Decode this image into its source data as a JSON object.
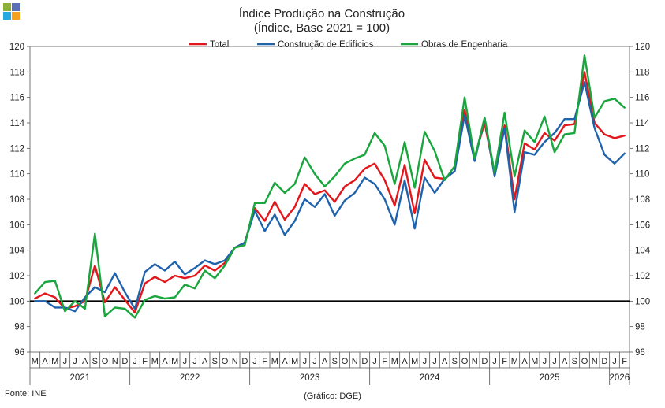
{
  "logo_colors": [
    "#8db03a",
    "#5b6fb7",
    "#25a9e0",
    "#f4a21d"
  ],
  "chart_data": {
    "type": "line",
    "title": "Índice Produção na Construção",
    "subtitle": "(Índice, Base 2021 = 100)",
    "ylim": [
      96,
      120
    ],
    "yticks": [
      96,
      98,
      100,
      102,
      104,
      106,
      108,
      110,
      112,
      114,
      116,
      118,
      120
    ],
    "reference_line": 100,
    "x_month_labels": [
      "M",
      "A",
      "M",
      "J",
      "J",
      "A",
      "S",
      "O",
      "N",
      "D",
      "J",
      "F",
      "M",
      "A",
      "M",
      "J",
      "J",
      "A",
      "S",
      "O",
      "N",
      "D",
      "J",
      "F",
      "M",
      "A",
      "M",
      "J",
      "J",
      "A",
      "S",
      "O",
      "N",
      "D",
      "J",
      "F",
      "M",
      "A",
      "M",
      "J",
      "J",
      "A",
      "S",
      "O",
      "N",
      "D",
      "J",
      "F",
      "M",
      "A",
      "M",
      "J",
      "J",
      "A",
      "S",
      "O",
      "N",
      "D",
      "J",
      "F"
    ],
    "years": [
      {
        "label": "2021",
        "start": 0,
        "end": 9
      },
      {
        "label": "2022",
        "start": 10,
        "end": 21
      },
      {
        "label": "2023",
        "start": 22,
        "end": 33
      },
      {
        "label": "2024",
        "start": 34,
        "end": 45
      },
      {
        "label": "2025",
        "start": 46,
        "end": 57
      },
      {
        "label": "2026",
        "start": 58,
        "end": 59
      }
    ],
    "series": [
      {
        "name": "Total",
        "color": "#e3161c",
        "values": [
          100.2,
          100.6,
          100.3,
          99.4,
          99.6,
          100.0,
          102.8,
          99.9,
          101.1,
          100.1,
          99.1,
          101.4,
          101.9,
          101.5,
          102.0,
          101.8,
          102.0,
          102.8,
          102.4,
          103.0,
          104.2,
          104.6,
          107.3,
          106.3,
          107.8,
          106.4,
          107.4,
          109.2,
          108.4,
          108.7,
          107.8,
          109.0,
          109.5,
          110.4,
          110.8,
          109.5,
          107.5,
          110.7,
          106.9,
          111.1,
          109.7,
          109.6,
          110.2,
          115.0,
          111.3,
          114.0,
          110.0,
          113.8,
          108.0,
          112.4,
          111.9,
          113.2,
          112.6,
          113.8,
          113.9,
          118.0,
          114.0,
          113.1,
          112.8,
          113.0
        ]
      },
      {
        "name": "Construção de Edifícios",
        "color": "#1f63ad",
        "values": [
          100.0,
          100.0,
          99.5,
          99.5,
          99.2,
          100.3,
          101.1,
          100.7,
          102.2,
          100.7,
          99.4,
          102.3,
          102.9,
          102.4,
          103.1,
          102.1,
          102.6,
          103.2,
          102.9,
          103.2,
          104.2,
          104.6,
          107.1,
          105.5,
          106.8,
          105.2,
          106.3,
          108.0,
          107.4,
          108.4,
          106.7,
          107.9,
          108.5,
          109.7,
          109.2,
          108.0,
          106.0,
          109.5,
          105.7,
          109.7,
          108.5,
          109.6,
          110.2,
          114.6,
          111.0,
          114.4,
          109.8,
          113.6,
          107.0,
          111.7,
          111.5,
          112.5,
          113.2,
          114.3,
          114.3,
          117.2,
          113.6,
          111.5,
          110.8,
          111.6
        ]
      },
      {
        "name": "Obras de Engenharia",
        "color": "#18a63d",
        "values": [
          100.6,
          101.5,
          101.6,
          99.2,
          100.0,
          99.4,
          105.3,
          98.8,
          99.5,
          99.4,
          98.7,
          100.1,
          100.4,
          100.2,
          100.3,
          101.3,
          101.0,
          102.4,
          101.8,
          102.8,
          104.2,
          104.4,
          107.7,
          107.7,
          109.3,
          108.5,
          109.2,
          111.3,
          110.0,
          109.0,
          109.8,
          110.8,
          111.2,
          111.5,
          113.2,
          112.2,
          109.2,
          112.5,
          108.9,
          113.3,
          111.8,
          109.5,
          110.6,
          116.0,
          111.2,
          114.4,
          110.1,
          114.8,
          109.8,
          113.4,
          112.5,
          114.5,
          111.7,
          113.1,
          113.2,
          119.3,
          114.4,
          115.7,
          115.9,
          115.2
        ]
      }
    ],
    "legend_position": "top-center"
  },
  "footer": {
    "source": "Fonte: INE",
    "credit": "(Gráfico: DGE)"
  }
}
